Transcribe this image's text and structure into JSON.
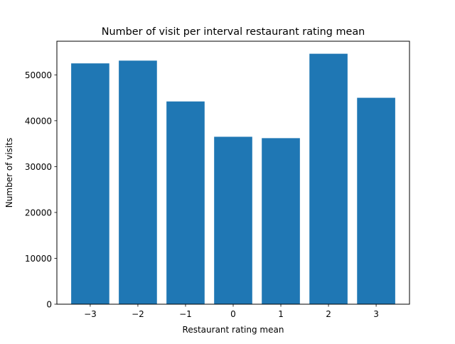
{
  "chart_data": {
    "type": "bar",
    "title": "Number of visit per interval restaurant rating mean",
    "xlabel": "Restaurant rating mean",
    "ylabel": "Number of visits",
    "categories": [
      "−3",
      "−2",
      "−1",
      "0",
      "1",
      "2",
      "3"
    ],
    "x": [
      -3,
      -2,
      -1,
      0,
      1,
      2,
      3
    ],
    "values": [
      52500,
      53100,
      44200,
      36500,
      36200,
      54600,
      45000
    ],
    "ylim": [
      0,
      57330
    ],
    "xlim": [
      -3.7,
      3.7
    ],
    "yticks": [
      0,
      10000,
      20000,
      30000,
      40000,
      50000
    ],
    "ytick_labels": [
      "0",
      "10000",
      "20000",
      "30000",
      "40000",
      "50000"
    ],
    "bar_color": "#1f77b4",
    "grid": false,
    "legend": "none"
  }
}
